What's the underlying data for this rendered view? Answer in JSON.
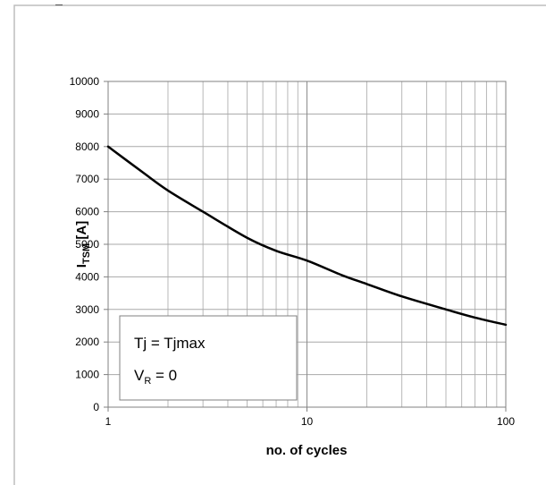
{
  "chart_data": {
    "type": "line",
    "xlabel": "no. of cycles",
    "ylabel": {
      "main": "I",
      "sub": "TSM",
      "unit": " [A]"
    },
    "x_scale": "log",
    "xlim": [
      1,
      100
    ],
    "ylim": [
      0,
      10000
    ],
    "x_ticks": [
      "1",
      "10",
      "100"
    ],
    "y_ticks": [
      "0",
      "1000",
      "2000",
      "3000",
      "4000",
      "5000",
      "6000",
      "7000",
      "8000",
      "9000",
      "10000"
    ],
    "grid": true,
    "legend_position": "bottom-left",
    "annotations": [
      {
        "text": "Tj = Tjmax"
      },
      {
        "main": "V",
        "sub": "R",
        "rest": " = 0"
      }
    ],
    "series": [
      {
        "color": "#000000",
        "x": [
          1,
          1.5,
          2,
          3,
          5,
          7,
          10,
          15,
          20,
          30,
          50,
          70,
          100
        ],
        "y": [
          8000,
          7200,
          6650,
          6000,
          5200,
          4800,
          4500,
          4050,
          3780,
          3400,
          3000,
          2750,
          2530
        ]
      }
    ]
  }
}
